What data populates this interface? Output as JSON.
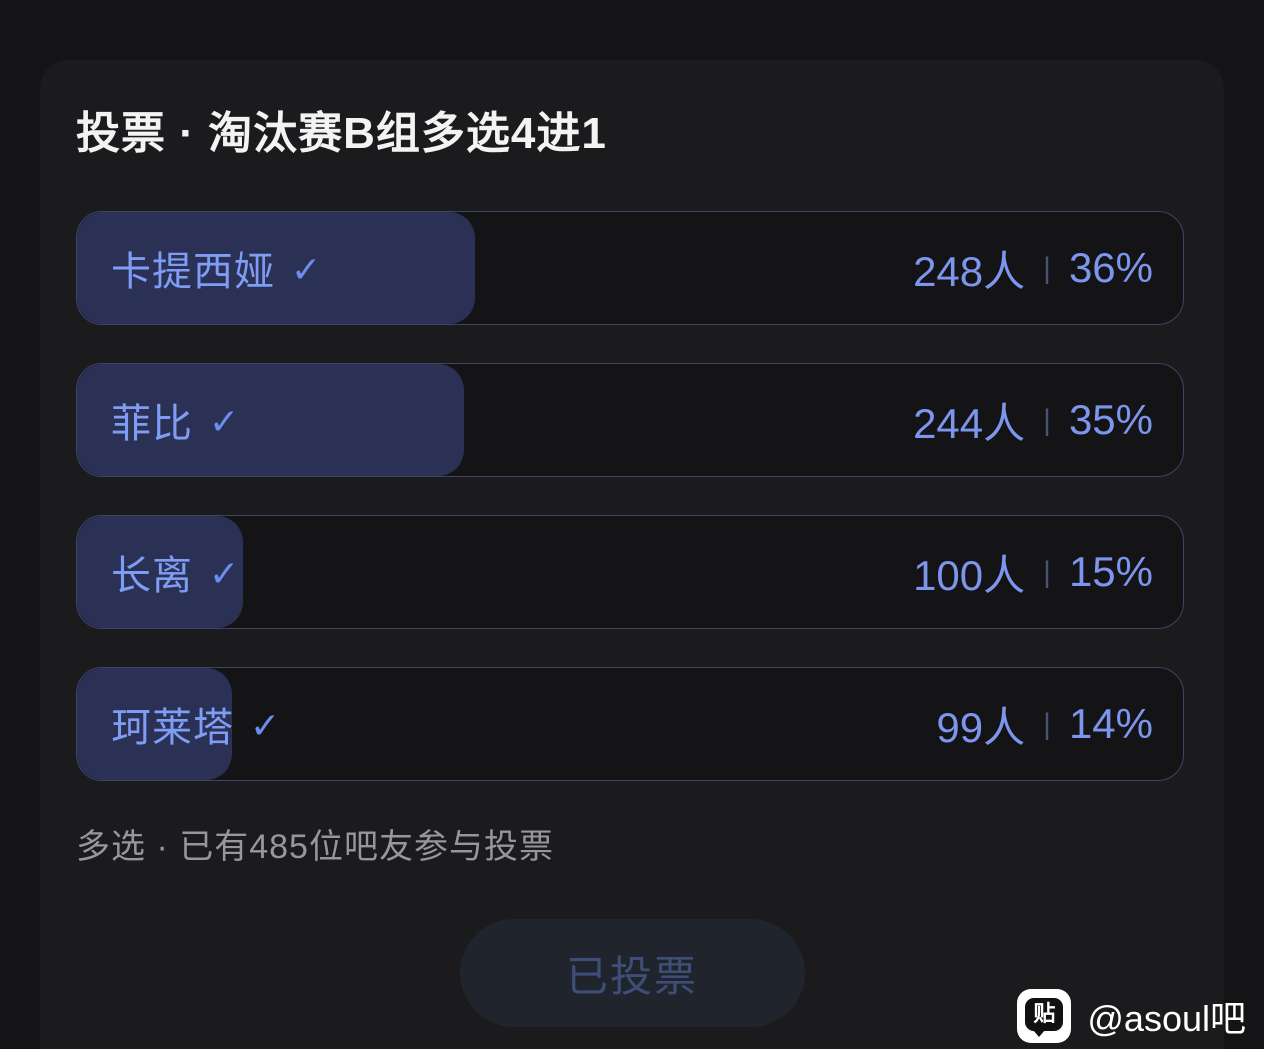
{
  "card": {
    "title": "投票 · 淘汰赛B组多选4进1"
  },
  "poll": {
    "options": [
      {
        "label": "卡提西娅",
        "check": "✓",
        "votes": "248人",
        "percent": "36%",
        "fill_percent": 36
      },
      {
        "label": "菲比",
        "check": "✓",
        "votes": "244人",
        "percent": "35%",
        "fill_percent": 35
      },
      {
        "label": "长离",
        "check": "✓",
        "votes": "100人",
        "percent": "15%",
        "fill_percent": 15
      },
      {
        "label": "珂莱塔",
        "check": "✓",
        "votes": "99人",
        "percent": "14%",
        "fill_percent": 14
      }
    ],
    "separator": "|",
    "footer_text": "多选 · 已有485位吧友参与投票",
    "button_label": "已投票",
    "total_votes": 485
  },
  "watermark": {
    "icon_char": "贴",
    "handle": "@asoul吧"
  },
  "colors": {
    "outer_background": "#141416",
    "card_background": "#1b1b1e",
    "row_background": "#141417",
    "row_border": "#3b4566",
    "fill": "#2b3154",
    "label_blue": "#7f9df5",
    "value_blue": "#7d95ec",
    "footer_gray": "#97979b",
    "button_background": "#20242d",
    "button_text": "#3e4e77"
  }
}
